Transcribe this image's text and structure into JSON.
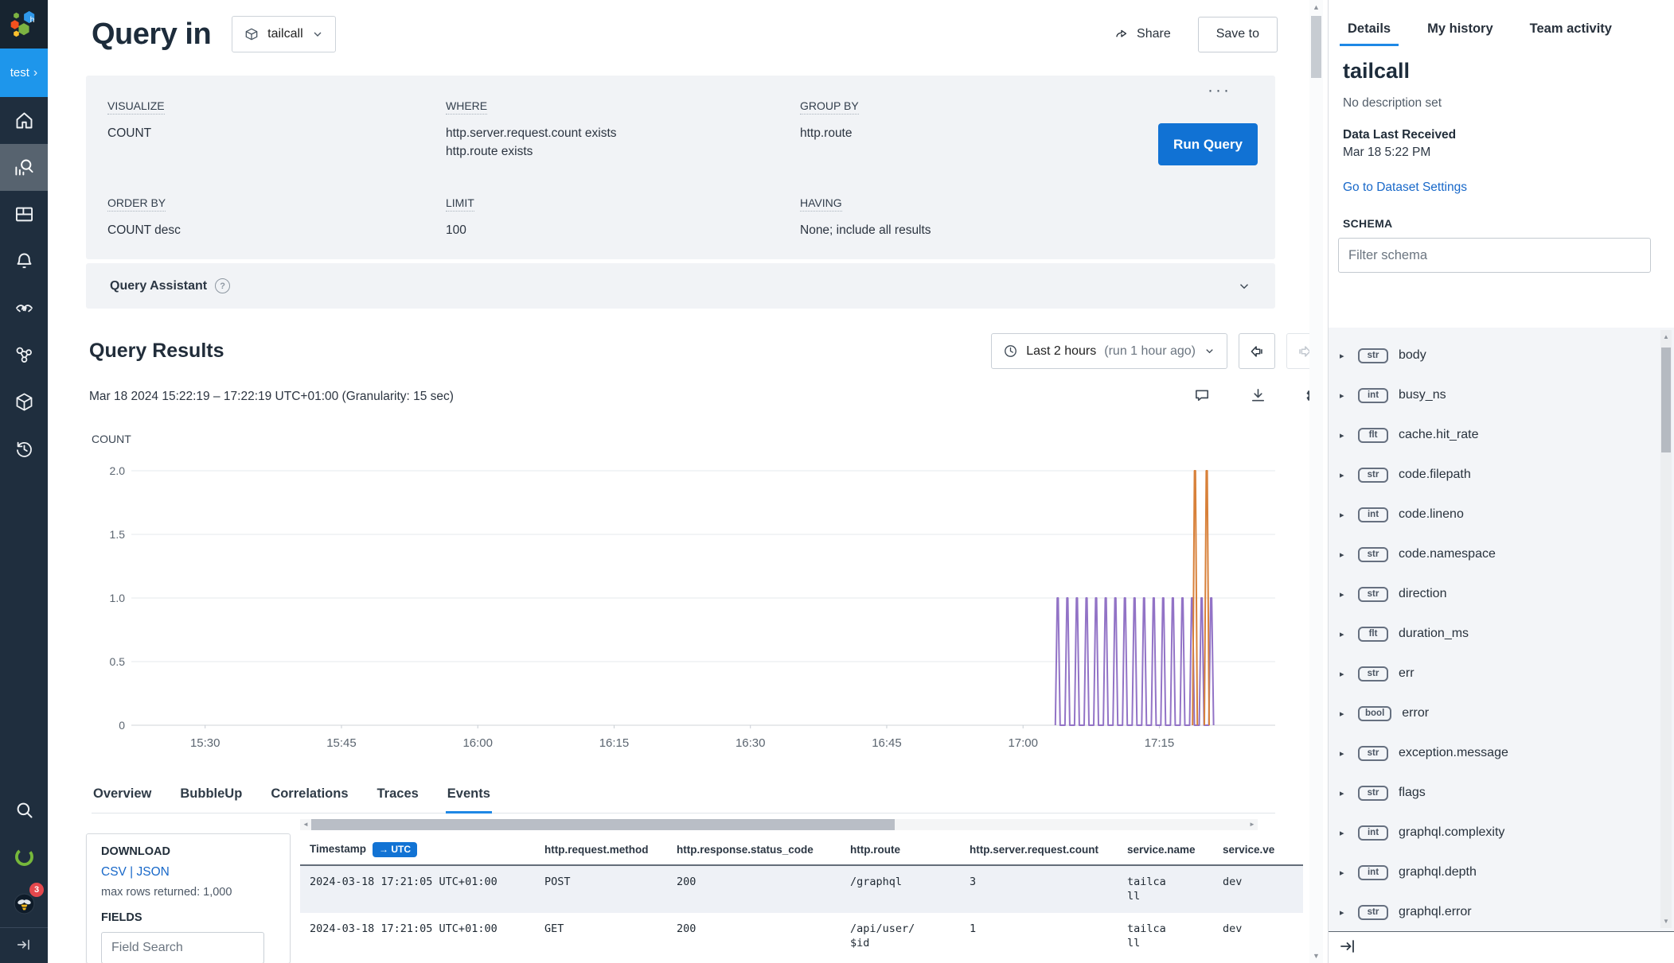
{
  "colors": {
    "accent_blue": "#1273d4",
    "run_button_blue": "#1172d4",
    "tab_underline_blue": "#1e88e5",
    "link_blue": "#1868c9",
    "sidebar_navy": "#1f2e3e",
    "environment_blue": "#1e96eb",
    "notification_red": "#e5484d",
    "series_purple": "#9273c6",
    "series_orange": "#d8813a",
    "panel_gray": "#f1f3f6"
  },
  "icons": {
    "chevron_down": "⌄",
    "chevron_right": "›",
    "caret_right": "▸",
    "overflow_menu": "···",
    "help": "?",
    "up_arrow": "▲",
    "down_arrow": "▼",
    "left_arrow": "◄",
    "right_arrow": "►"
  },
  "sidebar": {
    "environment": "test",
    "notification_count": "3"
  },
  "header": {
    "title": "Query in",
    "dataset": "tailcall",
    "share_label": "Share",
    "save_label": "Save to"
  },
  "builder": {
    "visualize_label": "VISUALIZE",
    "visualize_value": "COUNT",
    "where_label": "WHERE",
    "where_values": [
      "http.server.request.count exists",
      "http.route exists"
    ],
    "group_by_label": "GROUP BY",
    "group_by_value": "http.route",
    "order_by_label": "ORDER BY",
    "order_by_value": "COUNT desc",
    "limit_label": "LIMIT",
    "limit_value": "100",
    "having_label": "HAVING",
    "having_value": "None; include all results",
    "run_button": "Run Query"
  },
  "assistant": {
    "label": "Query Assistant"
  },
  "results": {
    "title": "Query Results",
    "time_range": "Last 2 hours",
    "time_range_note": "(run 1 hour ago)",
    "range_line": "Mar 18 2024 15:22:19 – 17:22:19 UTC+01:00 (Granularity: 15 sec)"
  },
  "chart_data": {
    "type": "line",
    "ylabel": "COUNT",
    "x_ticks": [
      "15:30",
      "15:45",
      "16:00",
      "16:15",
      "16:30",
      "16:45",
      "17:00",
      "17:15"
    ],
    "y_ticks": [
      "0",
      "0.5",
      "1.0",
      "1.5",
      "2.0"
    ],
    "ylim": [
      0,
      2
    ],
    "x_window": {
      "start": "15:22:19",
      "end": "17:22:19",
      "granularity_sec": 15
    },
    "series": [
      {
        "color": "#9273c6",
        "value": 1,
        "connected": true,
        "spike_minutes": [
          101.5,
          102.56,
          103.61,
          104.67,
          105.72,
          106.78,
          107.84,
          108.89,
          109.95,
          111.0,
          112.06,
          113.11,
          114.17,
          115.23,
          116.28,
          117.34,
          118.39
        ]
      },
      {
        "color": "#d8813a",
        "value": 2,
        "connected": false,
        "spike_minutes": [
          116.6,
          117.9
        ]
      }
    ]
  },
  "results_tabs": {
    "labels": [
      "Overview",
      "BubbleUp",
      "Correlations",
      "Traces",
      "Events"
    ],
    "active_index": 4
  },
  "download_panel": {
    "download_label": "DOWNLOAD",
    "csv": "CSV",
    "sep": " | ",
    "json": "JSON",
    "max_rows": "max rows returned: 1,000",
    "fields_label": "FIELDS",
    "field_search_placeholder": "Field Search"
  },
  "table": {
    "columns": [
      {
        "label": "Timestamp",
        "badge": "→ UTC"
      },
      {
        "label": "http.request.method"
      },
      {
        "label": "http.response.status_code"
      },
      {
        "label": "http.route"
      },
      {
        "label": "http.server.request.count"
      },
      {
        "label": "service.name"
      },
      {
        "label": "service.ve"
      }
    ],
    "rows": [
      [
        "2024-03-18 17:21:05 UTC+01:00",
        "POST",
        "200",
        "/graphql",
        "3",
        "tailcall",
        "dev"
      ],
      [
        "2024-03-18 17:21:05 UTC+01:00",
        "GET",
        "200",
        "/api/user/$id",
        "1",
        "tailcall",
        "dev"
      ]
    ]
  },
  "details_panel": {
    "tabs": [
      "Details",
      "My history",
      "Team activity"
    ],
    "active_index": 0,
    "title": "tailcall",
    "description": "No description set",
    "last_received_label": "Data Last Received",
    "last_received_value": "Mar 18 5:22 PM",
    "settings_link": "Go to Dataset Settings",
    "schema_label": "SCHEMA",
    "filter_placeholder": "Filter schema",
    "fields": [
      {
        "type": "str",
        "name": "body"
      },
      {
        "type": "int",
        "name": "busy_ns"
      },
      {
        "type": "flt",
        "name": "cache.hit_rate"
      },
      {
        "type": "str",
        "name": "code.filepath"
      },
      {
        "type": "int",
        "name": "code.lineno"
      },
      {
        "type": "str",
        "name": "code.namespace"
      },
      {
        "type": "str",
        "name": "direction"
      },
      {
        "type": "flt",
        "name": "duration_ms"
      },
      {
        "type": "str",
        "name": "err"
      },
      {
        "type": "bool",
        "name": "error"
      },
      {
        "type": "str",
        "name": "exception.message"
      },
      {
        "type": "str",
        "name": "flags"
      },
      {
        "type": "int",
        "name": "graphql.complexity"
      },
      {
        "type": "int",
        "name": "graphql.depth"
      },
      {
        "type": "str",
        "name": "graphql.error"
      }
    ]
  }
}
